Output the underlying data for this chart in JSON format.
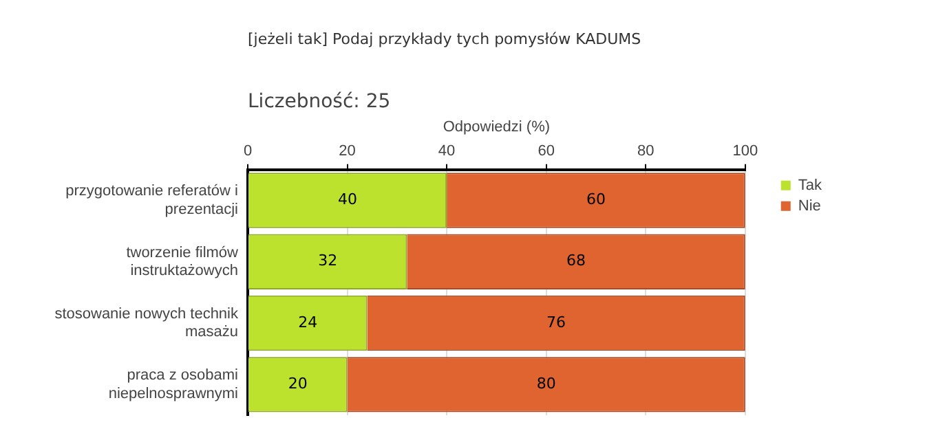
{
  "chart_data": {
    "type": "bar",
    "orientation": "horizontal",
    "stacked": true,
    "title": "[jeżeli tak] Podaj przykłady tych pomysłów KADUMS",
    "subtitle": "Liczebność: 25",
    "xlabel": "Odpowiedzi (%)",
    "categories": [
      "przygotowanie referatów i prezentacji",
      "tworzenie filmów instruktażowych",
      "stosowanie nowych technik masażu",
      "praca z osobami niepelnosprawnymi"
    ],
    "series": [
      {
        "name": "Tak",
        "color": "#bde22d",
        "values": [
          40,
          32,
          24,
          20
        ]
      },
      {
        "name": "Nie",
        "color": "#e06430",
        "values": [
          60,
          68,
          76,
          80
        ]
      }
    ],
    "xlim": [
      0,
      100
    ],
    "xticks": [
      0,
      20,
      40,
      60,
      80,
      100
    ],
    "grid": "x",
    "legend": "top right",
    "data_labels": true
  }
}
